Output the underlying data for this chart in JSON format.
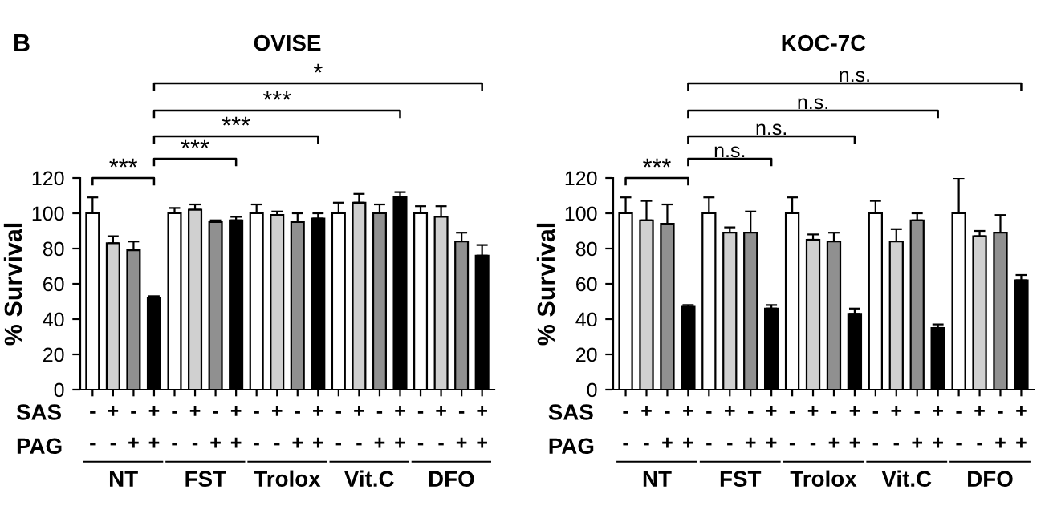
{
  "chart_data": [
    {
      "type": "bar",
      "title": "OVISE",
      "ylabel": "% Survival",
      "categories": [
        "-\n-",
        "+\n-",
        "-\n+",
        "+\n+",
        "-\n-",
        "+\n-",
        "-\n+",
        "+\n+",
        "-\n-",
        "+\n-",
        "-\n+",
        "+\n+",
        "-\n-",
        "+\n-",
        "-\n+",
        "+\n+",
        "-\n-",
        "+\n-",
        "-\n+",
        "+\n+"
      ],
      "values": [
        100,
        83,
        79,
        52,
        100,
        102,
        95,
        96,
        100,
        99,
        95,
        97,
        100,
        106,
        100,
        109,
        100,
        98,
        84,
        76
      ],
      "errors": [
        [
          100,
          109
        ],
        [
          83,
          87
        ],
        [
          79,
          84
        ],
        [
          52,
          53
        ],
        [
          100,
          103
        ],
        [
          102,
          105
        ],
        [
          95,
          96
        ],
        [
          96,
          98
        ],
        [
          100,
          105
        ],
        [
          99,
          101
        ],
        [
          95,
          100
        ],
        [
          97,
          100
        ],
        [
          100,
          106
        ],
        [
          106,
          111
        ],
        [
          100,
          105
        ],
        [
          109,
          112
        ],
        [
          100,
          104
        ],
        [
          98,
          104
        ],
        [
          84,
          89
        ],
        [
          76,
          82
        ]
      ],
      "colors": [
        "#ffffff",
        "#d0d0d0",
        "#909090",
        "#000000",
        "#ffffff",
        "#d0d0d0",
        "#909090",
        "#000000",
        "#ffffff",
        "#d0d0d0",
        "#909090",
        "#000000",
        "#ffffff",
        "#d0d0d0",
        "#909090",
        "#000000",
        "#ffffff",
        "#d0d0d0",
        "#909090",
        "#000000"
      ],
      "ylim": [
        0,
        120
      ],
      "yticks": [
        0,
        20,
        40,
        60,
        80,
        100,
        120
      ],
      "grid": false,
      "legend": false,
      "annotations": [
        "SAS",
        "PAG",
        "NT",
        "FST",
        "Trolox",
        "Vit.C",
        "DFO",
        "***",
        "***",
        "***",
        "***",
        "*",
        "B"
      ]
    },
    {
      "type": "bar",
      "title": "KOC-7C",
      "ylabel": "% Survival",
      "categories": [
        "-\n-",
        "+\n-",
        "-\n+",
        "+\n+",
        "-\n-",
        "+\n-",
        "-\n+",
        "+\n+",
        "-\n-",
        "+\n-",
        "-\n+",
        "+\n+",
        "-\n-",
        "+\n-",
        "-\n+",
        "+\n+",
        "-\n-",
        "+\n-",
        "-\n+",
        "+\n+"
      ],
      "values": [
        100,
        96,
        94,
        47,
        100,
        89,
        89,
        46,
        100,
        85,
        84,
        43,
        100,
        84,
        96,
        35,
        100,
        87,
        89,
        62
      ],
      "errors": [
        [
          100,
          109
        ],
        [
          96,
          107
        ],
        [
          94,
          105
        ],
        [
          47,
          48
        ],
        [
          100,
          109
        ],
        [
          89,
          92
        ],
        [
          89,
          101
        ],
        [
          46,
          48
        ],
        [
          100,
          109
        ],
        [
          85,
          88
        ],
        [
          84,
          89
        ],
        [
          43,
          46
        ],
        [
          100,
          107
        ],
        [
          84,
          91
        ],
        [
          96,
          100
        ],
        [
          35,
          37
        ],
        [
          100,
          120
        ],
        [
          87,
          90
        ],
        [
          89,
          99
        ],
        [
          62,
          65
        ]
      ],
      "colors": [
        "#ffffff",
        "#d0d0d0",
        "#909090",
        "#000000",
        "#ffffff",
        "#d0d0d0",
        "#909090",
        "#000000",
        "#ffffff",
        "#d0d0d0",
        "#909090",
        "#000000",
        "#ffffff",
        "#d0d0d0",
        "#909090",
        "#000000",
        "#ffffff",
        "#d0d0d0",
        "#909090",
        "#000000"
      ],
      "ylim": [
        0,
        120
      ],
      "yticks": [
        0,
        20,
        40,
        60,
        80,
        100,
        120
      ],
      "grid": false,
      "legend": false,
      "annotations": [
        "SAS",
        "PAG",
        "NT",
        "FST",
        "Trolox",
        "Vit.C",
        "DFO",
        "***",
        "n.s.",
        "n.s.",
        "n.s.",
        "n.s."
      ]
    }
  ]
}
